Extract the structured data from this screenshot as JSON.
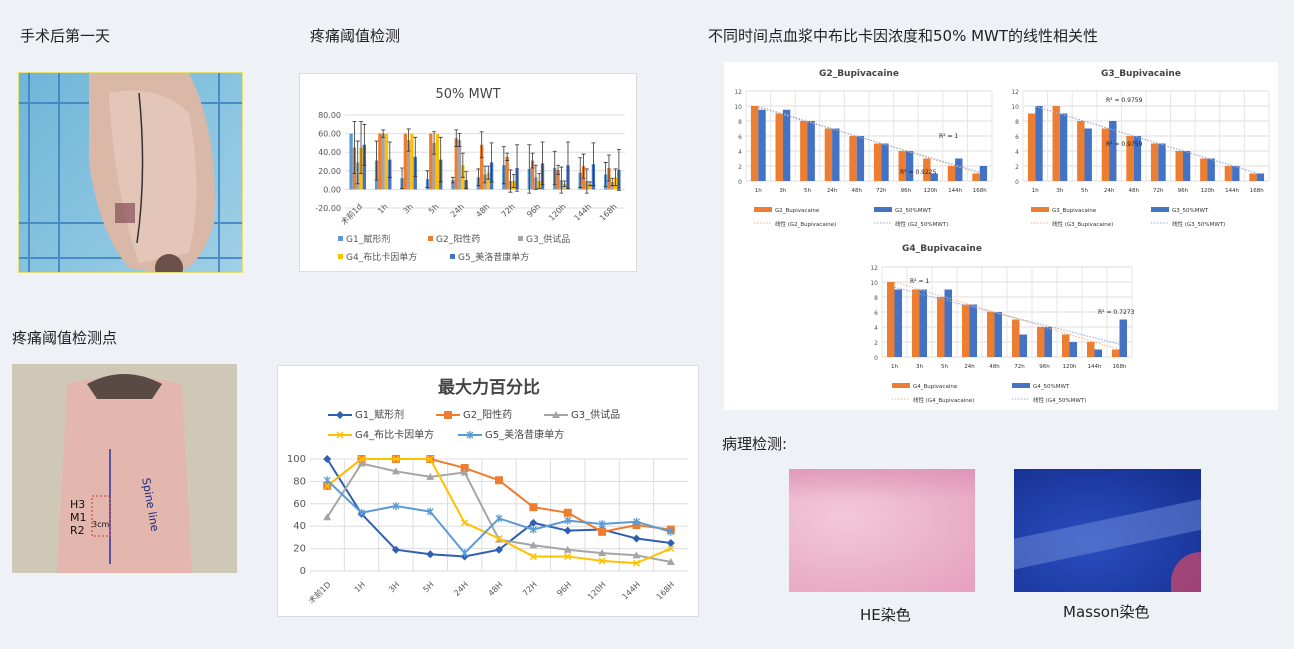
{
  "sections": {
    "post_op_day1": "手术后第一天",
    "pain_threshold": "疼痛阈值检测",
    "correlation": "不同时间点血浆中布比卡因浓度和50% MWT的线性相关性",
    "pain_points": "疼痛阈值检测点",
    "pathology": "病理检测:"
  },
  "photos": {
    "point_labels": [
      "H3",
      "M1",
      "R2"
    ],
    "distance": "3cm",
    "spine": "Spine line"
  },
  "pathology": {
    "he_label": "HE染色",
    "masson_label": "Masson染色"
  },
  "colors": {
    "G1": "#5b9bd5",
    "G2": "#ed7d31",
    "G3": "#a5a5a5",
    "G4": "#ffc000",
    "G5": "#4472c4",
    "lineG1": "#2f5fb3",
    "lineG5": "#5b9bd5"
  },
  "chart_data": [
    {
      "id": "mwt",
      "type": "bar",
      "title": "50% MWT",
      "ylim": [
        -20,
        80
      ],
      "yticks": [
        "80.00",
        "60.00",
        "40.00",
        "20.00",
        "0.00",
        "-20.00"
      ],
      "categories": [
        "术前1d",
        "1h",
        "3h",
        "5h",
        "24h",
        "48h",
        "72h",
        "96h",
        "120h",
        "144h",
        "168h"
      ],
      "series": [
        {
          "name": "G1_赋形剂",
          "values": [
            60,
            31,
            12,
            11,
            10,
            13,
            26,
            22,
            23,
            18,
            16
          ],
          "err": [
            0,
            21,
            11,
            9,
            3,
            9,
            20,
            26,
            18,
            16,
            13
          ]
        },
        {
          "name": "G2_阳性药",
          "values": [
            45,
            60,
            60,
            60,
            55,
            48,
            35,
            31,
            21,
            25,
            23
          ],
          "err": [
            28,
            0,
            0,
            0,
            9,
            14,
            4,
            8,
            5,
            13,
            14
          ]
        },
        {
          "name": "G3_供试品",
          "values": [
            29,
            60,
            53,
            50,
            53,
            16,
            9,
            13,
            10,
            9,
            8
          ],
          "err": [
            23,
            4,
            12,
            12,
            7,
            9,
            12,
            13,
            14,
            13,
            4
          ]
        },
        {
          "name": "G4_布比卡因单方",
          "values": [
            45,
            60,
            60,
            60,
            26,
            18,
            9,
            9,
            6,
            6,
            13
          ],
          "err": [
            28,
            0,
            0,
            0,
            13,
            7,
            7,
            8,
            3,
            2,
            9
          ]
        },
        {
          "name": "G5_美洛昔康单方",
          "values": [
            48,
            32,
            35,
            32,
            10,
            29,
            23,
            28,
            26,
            27,
            21
          ],
          "err": [
            22,
            19,
            21,
            24,
            9,
            21,
            25,
            23,
            25,
            23,
            22
          ]
        }
      ]
    },
    {
      "id": "maxforce",
      "type": "line",
      "title": "最大力百分比",
      "ylim": [
        0,
        100
      ],
      "yticks": [
        "100",
        "80",
        "60",
        "40",
        "20",
        "0"
      ],
      "categories": [
        "术前1D",
        "1H",
        "3H",
        "5H",
        "24H",
        "48H",
        "72H",
        "96H",
        "120H",
        "144H",
        "168H"
      ],
      "series": [
        {
          "name": "G1_赋形剂",
          "marker": "diamond",
          "values": [
            100,
            51,
            19,
            15,
            13,
            19,
            43,
            36,
            37,
            29,
            25
          ]
        },
        {
          "name": "G2_阳性药",
          "marker": "square",
          "values": [
            76,
            100,
            100,
            100,
            92,
            81,
            57,
            52,
            35,
            41,
            37
          ]
        },
        {
          "name": "G3_供试品",
          "marker": "triangle",
          "values": [
            48,
            96,
            89,
            84,
            88,
            28,
            23,
            19,
            16,
            14,
            8
          ]
        },
        {
          "name": "G4_布比卡因单方",
          "marker": "x",
          "values": [
            76,
            100,
            100,
            100,
            43,
            29,
            13,
            13,
            9,
            7,
            20
          ]
        },
        {
          "name": "G5_美洛昔康单方",
          "marker": "star",
          "values": [
            81,
            52,
            58,
            53,
            16,
            47,
            37,
            45,
            42,
            44,
            35
          ]
        }
      ]
    },
    {
      "id": "g2",
      "type": "bar",
      "title": "G2_Bupivacaine",
      "ylim": [
        0,
        12
      ],
      "yticks": [
        "12",
        "10",
        "8",
        "6",
        "4",
        "2",
        "0"
      ],
      "categories": [
        "1h",
        "3h",
        "5h",
        "24h",
        "48h",
        "72h",
        "96h",
        "120h",
        "144h",
        "168h"
      ],
      "series": [
        {
          "name": "G2_Bupivacaine",
          "values": [
            10,
            9,
            8,
            7,
            6,
            5,
            4,
            3,
            2,
            1
          ]
        },
        {
          "name": "G2_50%MWT",
          "values": [
            9.5,
            9.5,
            8,
            7,
            6,
            5,
            4,
            1,
            3,
            2
          ]
        }
      ],
      "trend_labels": [
        "线性 (G2_Bupivacaine)",
        "线性 (G2_50%MWT)"
      ],
      "annotations": [
        "R² = 1",
        "R² = 0.9225"
      ]
    },
    {
      "id": "g3",
      "type": "bar",
      "title": "G3_Bupivacaine",
      "ylim": [
        0,
        12
      ],
      "yticks": [
        "12",
        "10",
        "8",
        "6",
        "4",
        "2",
        "0"
      ],
      "categories": [
        "1h",
        "3h",
        "5h",
        "24h",
        "48h",
        "72h",
        "96h",
        "120h",
        "144h",
        "168h"
      ],
      "series": [
        {
          "name": "G3_Bupivacaine",
          "values": [
            9,
            10,
            8,
            7,
            6,
            5,
            4,
            3,
            2,
            1
          ]
        },
        {
          "name": "G3_50%MWT",
          "values": [
            10,
            9,
            7,
            8,
            6,
            5,
            4,
            3,
            2,
            1
          ]
        }
      ],
      "trend_labels": [
        "线性 (G3_Bupivacaine)",
        "线性 (G3_50%MWT)"
      ],
      "annotations": [
        "R² = 0.9759",
        "R² = 0.9759"
      ]
    },
    {
      "id": "g4",
      "type": "bar",
      "title": "G4_Bupivacaine",
      "ylim": [
        0,
        12
      ],
      "yticks": [
        "12",
        "10",
        "8",
        "6",
        "4",
        "2",
        "0"
      ],
      "categories": [
        "1h",
        "3h",
        "5h",
        "24h",
        "48h",
        "72h",
        "96h",
        "120h",
        "144h",
        "168h"
      ],
      "series": [
        {
          "name": "G4_Bupivacaine",
          "values": [
            10,
            9,
            8,
            7,
            6,
            5,
            4,
            3,
            2,
            1
          ]
        },
        {
          "name": "G4_50%MWT",
          "values": [
            9,
            9,
            9,
            7,
            6,
            3,
            4,
            2,
            1,
            5
          ]
        }
      ],
      "trend_labels": [
        "线性 (G4_Bupivacaine)",
        "线性 (G4_50%MWT)"
      ],
      "annotations": [
        "R² = 1",
        "R² = 0.7273"
      ]
    }
  ]
}
